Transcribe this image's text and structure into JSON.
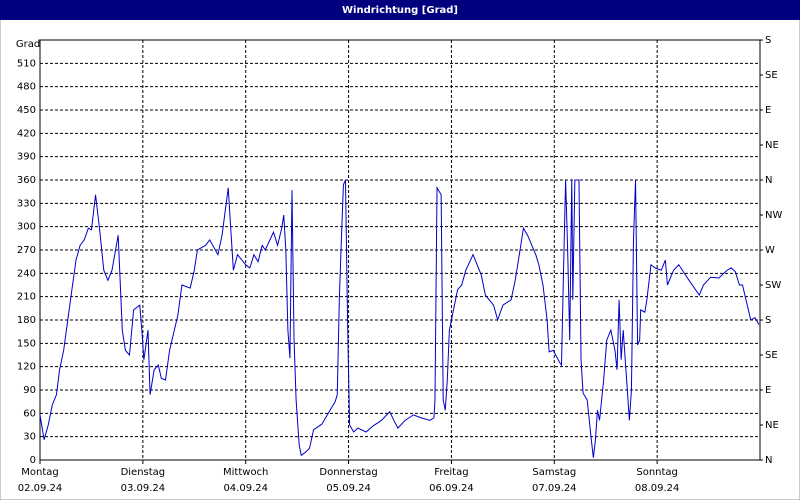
{
  "chart_data": {
    "type": "line",
    "title": "Windrichtung [Grad]",
    "y_label": "Grad",
    "color": "#0000c8",
    "grid": true,
    "xlim": [
      0,
      7
    ],
    "xticks": [
      {
        "value": 0,
        "label": "Montag"
      },
      {
        "value": 1,
        "label": "Dienstag"
      },
      {
        "value": 2,
        "label": "Mittwoch"
      },
      {
        "value": 3,
        "label": "Donnerstag"
      },
      {
        "value": 4,
        "label": "Freitag"
      },
      {
        "value": 5,
        "label": "Samstag"
      },
      {
        "value": 6,
        "label": "Sonntag"
      }
    ],
    "xtick_dates": [
      "02.09.24",
      "03.09.24",
      "04.09.24",
      "05.09.24",
      "06.09.24",
      "07.09.24",
      "08.09.24"
    ],
    "ylim": [
      0,
      540
    ],
    "yticks": [
      0,
      30,
      60,
      90,
      120,
      150,
      180,
      210,
      240,
      270,
      300,
      330,
      360,
      390,
      420,
      450,
      480,
      510
    ],
    "y2lim": [
      0,
      540
    ],
    "y2ticks": [
      {
        "value": 0,
        "label": "N"
      },
      {
        "value": 45,
        "label": "NE"
      },
      {
        "value": 90,
        "label": "E"
      },
      {
        "value": 135,
        "label": "SE"
      },
      {
        "value": 180,
        "label": "S"
      },
      {
        "value": 225,
        "label": "SW"
      },
      {
        "value": 270,
        "label": "W"
      },
      {
        "value": 315,
        "label": "NW"
      },
      {
        "value": 360,
        "label": "N"
      },
      {
        "value": 405,
        "label": "NE"
      },
      {
        "value": 450,
        "label": "E"
      },
      {
        "value": 495,
        "label": "SE"
      },
      {
        "value": 540,
        "label": "S"
      }
    ],
    "x": [
      0,
      0.04,
      0.08,
      0.12,
      0.16,
      0.19,
      0.23,
      0.27,
      0.31,
      0.35,
      0.39,
      0.43,
      0.47,
      0.5,
      0.54,
      0.58,
      0.62,
      0.66,
      0.7,
      0.76,
      0.8,
      0.83,
      0.87,
      0.91,
      0.97,
      0.99,
      1.01,
      1.05,
      1.07,
      1.11,
      1.15,
      1.18,
      1.22,
      1.26,
      1.34,
      1.38,
      1.46,
      1.5,
      1.53,
      1.61,
      1.65,
      1.73,
      1.77,
      1.83,
      1.84,
      1.88,
      1.92,
      2,
      2.04,
      2.08,
      2.12,
      2.16,
      2.19,
      2.27,
      2.31,
      2.35,
      2.37,
      2.39,
      2.41,
      2.43,
      2.45,
      2.47,
      2.49,
      2.52,
      2.54,
      2.58,
      2.62,
      2.66,
      2.74,
      2.82,
      2.87,
      2.89,
      2.91,
      2.93,
      2.95,
      2.97,
      2.99,
      3.01,
      3.05,
      3.09,
      3.17,
      3.24,
      3.32,
      3.4,
      3.44,
      3.48,
      3.55,
      3.63,
      3.71,
      3.79,
      3.83,
      3.84,
      3.86,
      3.9,
      3.92,
      3.94,
      3.96,
      3.98,
      4.06,
      4.1,
      4.14,
      4.21,
      4.25,
      4.29,
      4.33,
      4.41,
      4.45,
      4.5,
      4.58,
      4.62,
      4.66,
      4.7,
      4.74,
      4.82,
      4.85,
      4.89,
      4.93,
      4.95,
      4.99,
      5.05,
      5.07,
      5.09,
      5.11,
      5.13,
      5.15,
      5.17,
      5.18,
      5.2,
      5.24,
      5.26,
      5.28,
      5.32,
      5.36,
      5.38,
      5.4,
      5.42,
      5.44,
      5.48,
      5.51,
      5.55,
      5.59,
      5.61,
      5.63,
      5.65,
      5.67,
      5.71,
      5.73,
      5.75,
      5.77,
      5.79,
      5.81,
      5.83,
      5.84,
      5.88,
      5.9,
      5.94,
      5.98,
      6.04,
      6.08,
      6.1,
      6.16,
      6.21,
      6.31,
      6.41,
      6.45,
      6.52,
      6.6,
      6.68,
      6.72,
      6.76,
      6.8,
      6.83,
      6.91,
      6.95,
      6.99
    ],
    "values": [
      58,
      26,
      45,
      71,
      84,
      116,
      141,
      180,
      219,
      257,
      276,
      283,
      298,
      296,
      341,
      296,
      244,
      231,
      244,
      289,
      167,
      141,
      135,
      193,
      199,
      167,
      129,
      167,
      84,
      116,
      122,
      105,
      103,
      141,
      186,
      225,
      221,
      244,
      270,
      276,
      283,
      264,
      289,
      350,
      328,
      244,
      264,
      251,
      247,
      264,
      255,
      276,
      270,
      293,
      276,
      298,
      315,
      270,
      167,
      131,
      347,
      154,
      77,
      19,
      6,
      10,
      15,
      39,
      46,
      64,
      75,
      84,
      206,
      283,
      354,
      360,
      180,
      45,
      36,
      41,
      36,
      44,
      51,
      62,
      51,
      41,
      51,
      58,
      54,
      51,
      54,
      77,
      350,
      341,
      77,
      64,
      103,
      167,
      219,
      225,
      244,
      264,
      251,
      238,
      212,
      199,
      180,
      199,
      206,
      231,
      264,
      298,
      289,
      264,
      251,
      225,
      180,
      139,
      141,
      126,
      122,
      244,
      360,
      270,
      154,
      360,
      206,
      360,
      360,
      129,
      86,
      77,
      26,
      3,
      26,
      64,
      51,
      103,
      154,
      167,
      141,
      116,
      206,
      129,
      167,
      90,
      51,
      90,
      283,
      360,
      148,
      154,
      193,
      190,
      206,
      251,
      247,
      244,
      257,
      225,
      244,
      251,
      231,
      212,
      225,
      235,
      234,
      244,
      247,
      242,
      225,
      225,
      180,
      183,
      174
    ]
  }
}
